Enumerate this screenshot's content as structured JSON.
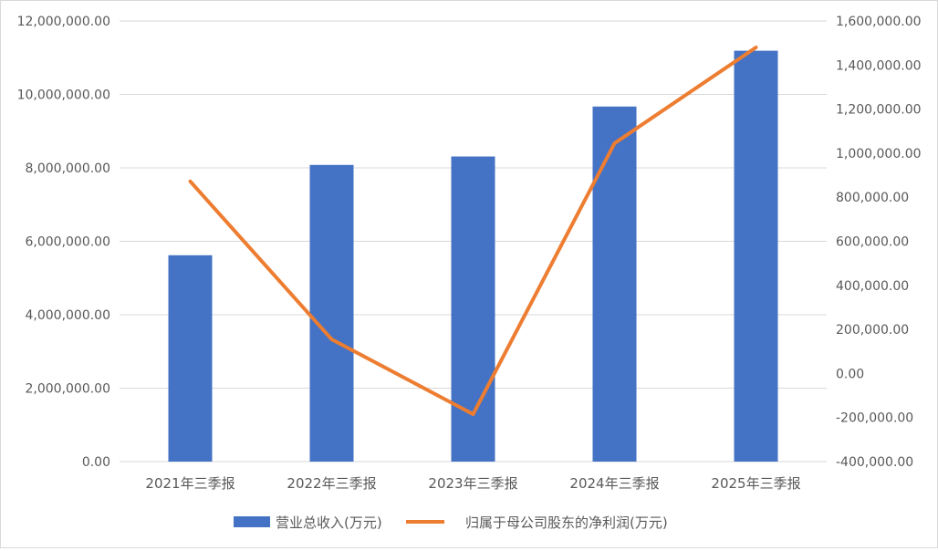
{
  "chart_data": {
    "type": "bar",
    "categories": [
      "2021年三季报",
      "2022年三季报",
      "2023年三季报",
      "2024年三季报",
      "2025年三季报"
    ],
    "series": [
      {
        "name": "营业总收入(万元)",
        "type": "bar",
        "axis": "left",
        "color": "#4472C4",
        "values": [
          5620000,
          8080000,
          8310000,
          9670000,
          11190000
        ]
      },
      {
        "name": "归属于母公司股东的净利润(万元)",
        "type": "line",
        "axis": "right",
        "color": "#ED7D31",
        "values": [
          872000,
          155000,
          -185000,
          1045000,
          1480000
        ]
      }
    ],
    "y_left": {
      "min": 0,
      "max": 12000000,
      "step": 2000000,
      "tick_labels": [
        "0.00",
        "2,000,000.00",
        "4,000,000.00",
        "6,000,000.00",
        "8,000,000.00",
        "10,000,000.00",
        "12,000,000.00"
      ]
    },
    "y_right": {
      "min": -400000,
      "max": 1600000,
      "step": 200000,
      "tick_labels": [
        "-400,000.00",
        "-200,000.00",
        "0.00",
        "200,000.00",
        "400,000.00",
        "600,000.00",
        "800,000.00",
        "1,000,000.00",
        "1,200,000.00",
        "1,400,000.00",
        "1,600,000.00"
      ]
    },
    "grid": true,
    "legend_position": "bottom",
    "title": "",
    "xlabel": "",
    "ylabel": ""
  }
}
